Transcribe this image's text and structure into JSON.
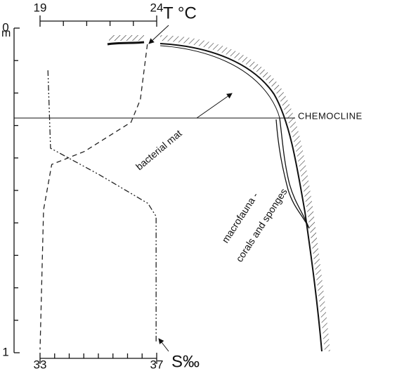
{
  "chart_data": {
    "type": "line",
    "xlabel": "T °C",
    "x2label": "S‰",
    "ylabel": "m",
    "xlim": [
      19,
      24
    ],
    "xticks": [
      19,
      24
    ],
    "xminor": [
      20,
      21,
      22,
      23
    ],
    "x2lim": [
      33,
      37
    ],
    "x2ticks": [
      33,
      37
    ],
    "x2minor": [
      33.5,
      34,
      34.5,
      35,
      35.5,
      36,
      36.5
    ],
    "ylim": [
      0,
      1
    ],
    "yticks": [
      0,
      1
    ],
    "yminor": [
      0.1,
      0.2,
      0.3,
      0.4,
      0.5,
      0.6,
      0.7,
      0.8,
      0.9
    ],
    "y_inverted": true,
    "series": [
      {
        "axis": "x",
        "dash": "7 5",
        "color": "#222",
        "depth": [
          0.05,
          0.22,
          0.29,
          0.38,
          0.42,
          0.56,
          0.99
        ],
        "values": [
          23.6,
          23.3,
          22.9,
          20.9,
          19.5,
          19.15,
          19.0
        ]
      },
      {
        "axis": "x2",
        "dash": "8 3 2 3 2 3",
        "color": "#222",
        "depth": [
          0.13,
          0.37,
          0.45,
          0.54,
          0.58,
          0.97
        ],
        "values": [
          33.27,
          33.36,
          35.0,
          36.7,
          36.98,
          36.98
        ]
      }
    ],
    "annotations": [
      "CHEMOCLINE",
      "bacterial mat",
      "macrofauna -",
      "corals and sponges"
    ]
  }
}
